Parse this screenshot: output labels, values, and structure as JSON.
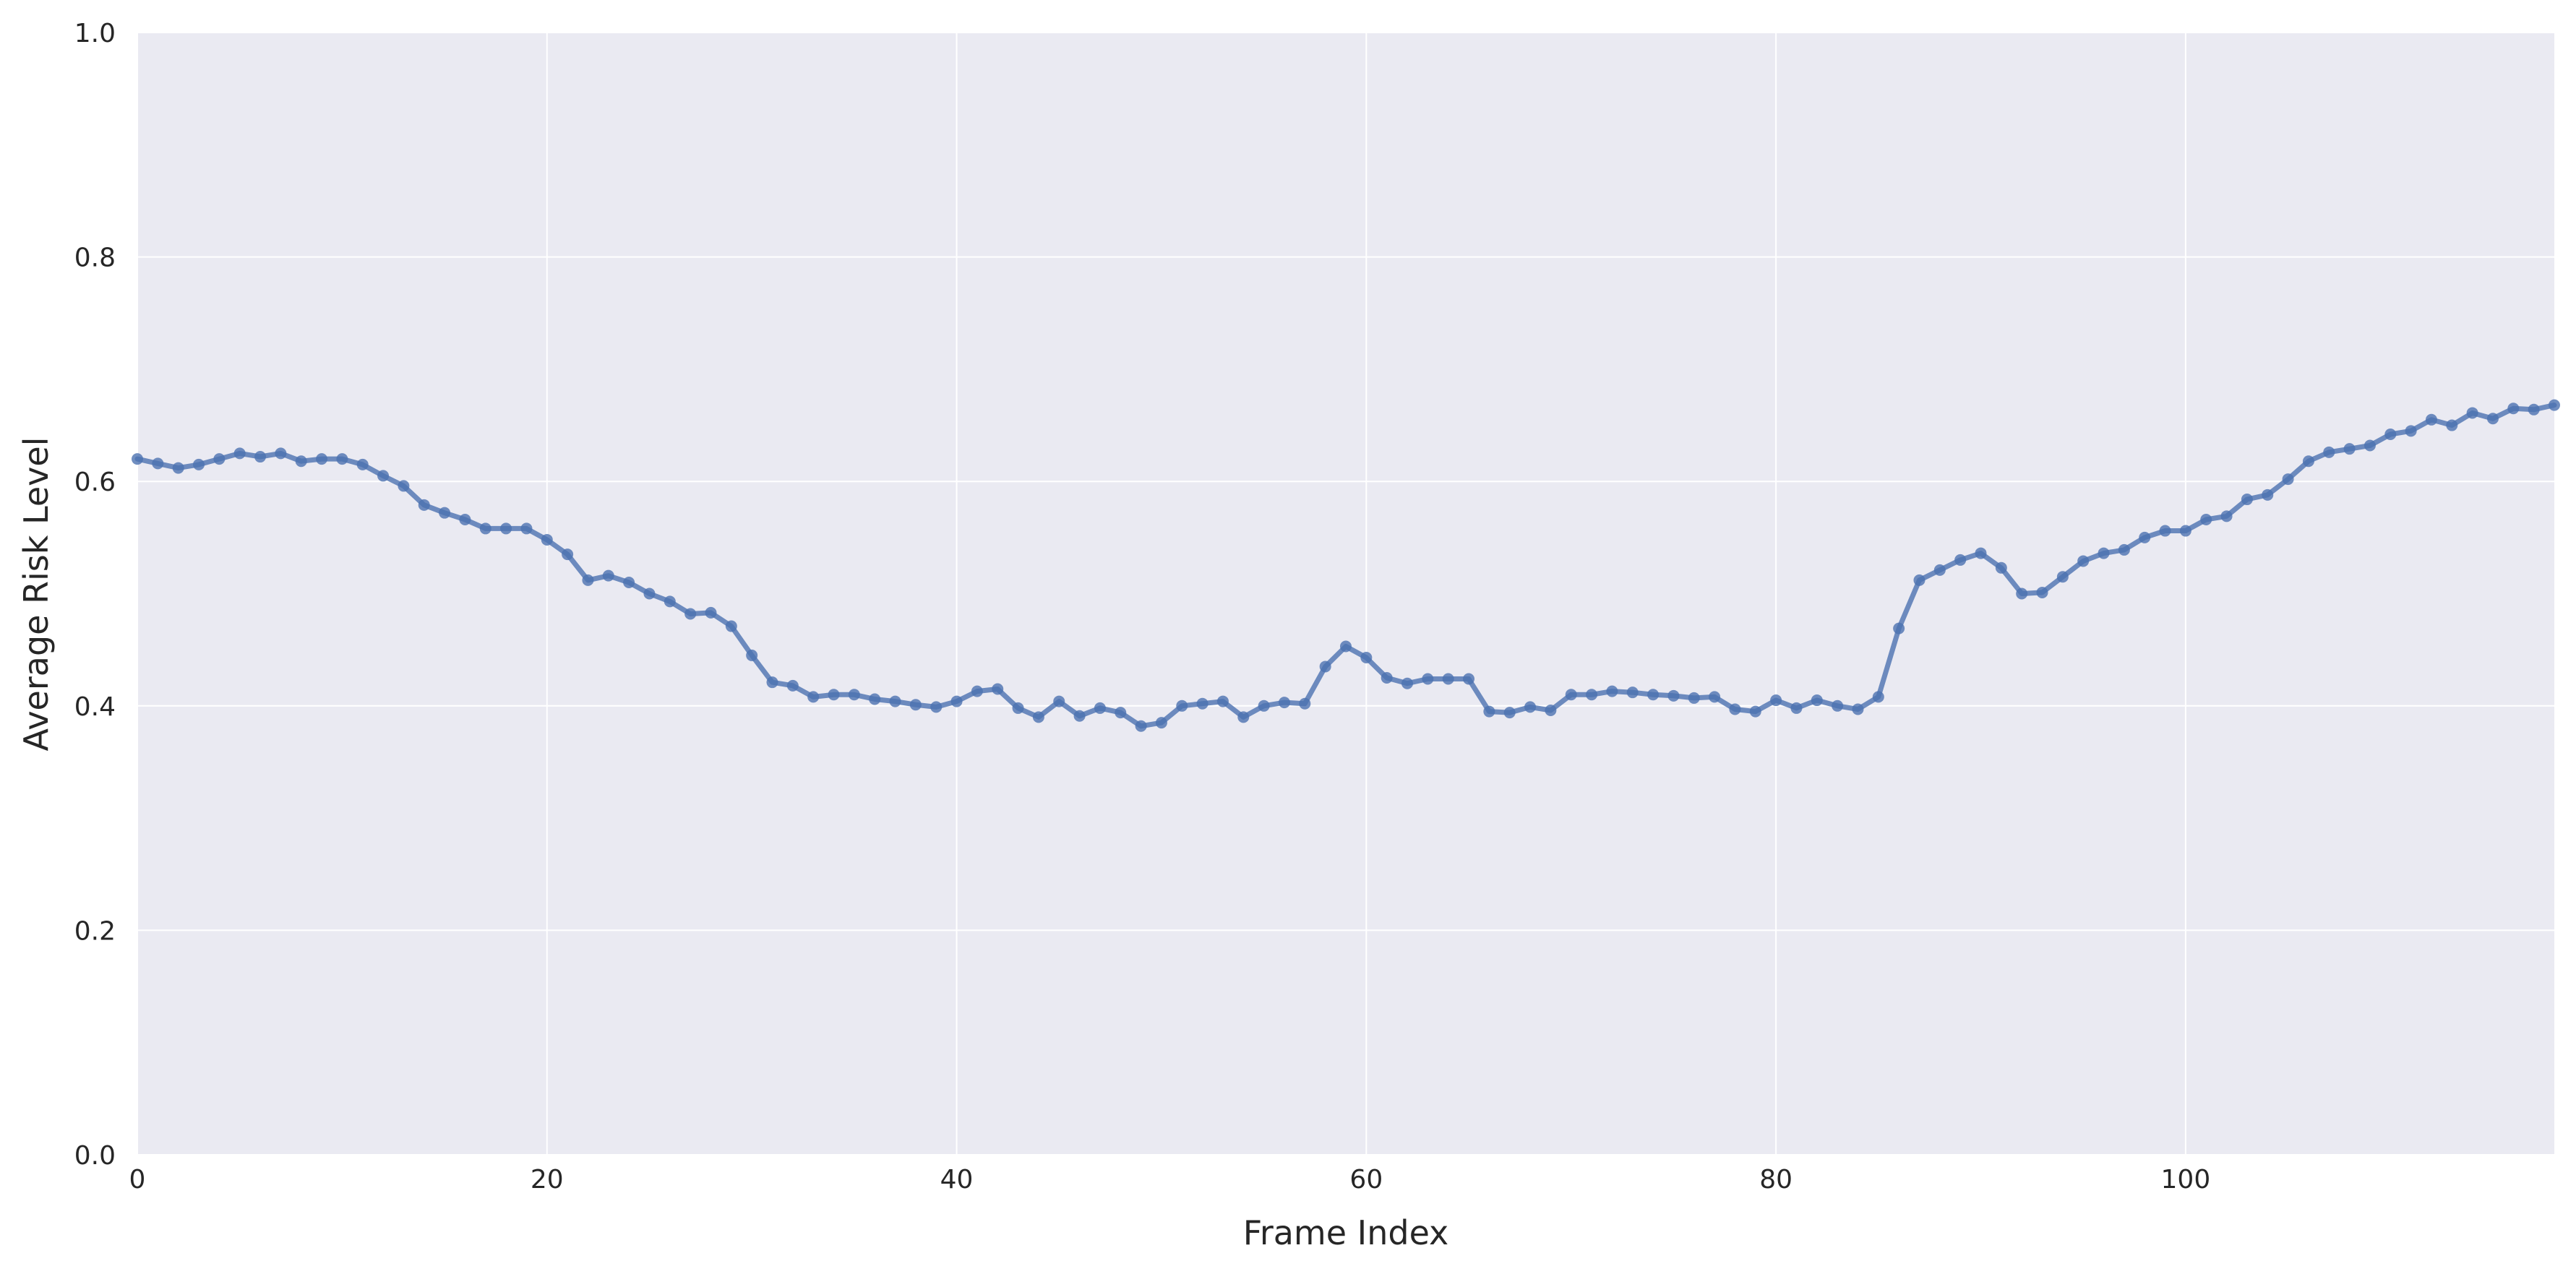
{
  "chart_data": {
    "type": "line",
    "title": "",
    "xlabel": "Frame Index",
    "ylabel": "Average Risk Level",
    "xlim": [
      0,
      118
    ],
    "ylim": [
      0.0,
      1.0
    ],
    "grid": true,
    "x_ticks": [
      0,
      20,
      40,
      60,
      80,
      100
    ],
    "x_tick_labels": [
      "0",
      "20",
      "40",
      "60",
      "80",
      "100"
    ],
    "y_ticks": [
      0.0,
      0.2,
      0.4,
      0.6,
      0.8,
      1.0
    ],
    "y_tick_labels": [
      "0.0",
      "0.2",
      "0.4",
      "0.6",
      "0.8",
      "1.0"
    ],
    "colors": {
      "line": "#4c72b0",
      "plot_background": "#eaeaf2",
      "grid": "#ffffff"
    },
    "series": [
      {
        "x": [
          0,
          1,
          2,
          3,
          4,
          5,
          6,
          7,
          8,
          9,
          10,
          11,
          12,
          13,
          14,
          15,
          16,
          17,
          18,
          19,
          20,
          21,
          22,
          23,
          24,
          25,
          26,
          27,
          28,
          29,
          30,
          31,
          32,
          33,
          34,
          35,
          36,
          37,
          38,
          39,
          40,
          41,
          42,
          43,
          44,
          45,
          46,
          47,
          48,
          49,
          50,
          51,
          52,
          53,
          54,
          55,
          56,
          57,
          58,
          59,
          60,
          61,
          62,
          63,
          64,
          65,
          66,
          67,
          68,
          69,
          70,
          71,
          72,
          73,
          74,
          75,
          76,
          77,
          78,
          79,
          80,
          81,
          82,
          83,
          84,
          85,
          86,
          87,
          88,
          89,
          90,
          91,
          92,
          93,
          94,
          95,
          96,
          97,
          98,
          99,
          100,
          101,
          102,
          103,
          104,
          105,
          106,
          107,
          108,
          109,
          110,
          111,
          112,
          113,
          114,
          115,
          116,
          117,
          118
        ],
        "values": [
          0.62,
          0.616,
          0.612,
          0.615,
          0.62,
          0.625,
          0.622,
          0.625,
          0.618,
          0.62,
          0.62,
          0.615,
          0.605,
          0.596,
          0.579,
          0.572,
          0.566,
          0.558,
          0.558,
          0.558,
          0.548,
          0.535,
          0.512,
          0.516,
          0.51,
          0.5,
          0.493,
          0.482,
          0.483,
          0.471,
          0.445,
          0.421,
          0.418,
          0.408,
          0.41,
          0.41,
          0.406,
          0.404,
          0.401,
          0.399,
          0.404,
          0.413,
          0.415,
          0.398,
          0.39,
          0.404,
          0.391,
          0.398,
          0.394,
          0.382,
          0.385,
          0.4,
          0.402,
          0.404,
          0.39,
          0.4,
          0.403,
          0.402,
          0.435,
          0.453,
          0.443,
          0.425,
          0.42,
          0.424,
          0.424,
          0.424,
          0.395,
          0.394,
          0.399,
          0.396,
          0.41,
          0.41,
          0.413,
          0.412,
          0.41,
          0.409,
          0.407,
          0.408,
          0.397,
          0.395,
          0.405,
          0.398,
          0.405,
          0.4,
          0.397,
          0.408,
          0.469,
          0.512,
          0.521,
          0.53,
          0.536,
          0.523,
          0.5,
          0.501,
          0.515,
          0.529,
          0.536,
          0.539,
          0.55,
          0.556,
          0.556,
          0.566,
          0.569,
          0.584,
          0.588,
          0.602,
          0.618,
          0.626,
          0.629,
          0.632,
          0.642,
          0.645,
          0.655,
          0.65,
          0.661,
          0.656,
          0.665,
          0.664,
          0.668
        ]
      }
    ]
  }
}
